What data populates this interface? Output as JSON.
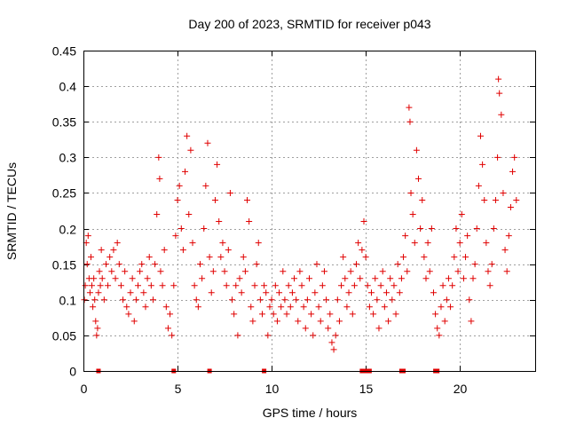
{
  "colors": {
    "series": "#e00000",
    "grid": "#a0a0a0",
    "frame": "#000000"
  },
  "chart_data": {
    "type": "scatter",
    "title": "Day 200 of 2023, SRMTID for receiver p043",
    "xlabel": "GPS time / hours",
    "ylabel": "SRMTID / TECUs",
    "xlim": [
      0,
      24
    ],
    "ylim": [
      0,
      0.45
    ],
    "grid": true,
    "xticks": [
      {
        "value": 0,
        "label": "0"
      },
      {
        "value": 5,
        "label": "5"
      },
      {
        "value": 10,
        "label": "10"
      },
      {
        "value": 15,
        "label": "15"
      },
      {
        "value": 20,
        "label": "20"
      }
    ],
    "yticks": [
      {
        "value": 0,
        "label": "0"
      },
      {
        "value": 0.05,
        "label": "0.05"
      },
      {
        "value": 0.1,
        "label": "0.1"
      },
      {
        "value": 0.15,
        "label": "0.15"
      },
      {
        "value": 0.2,
        "label": "0.2"
      },
      {
        "value": 0.25,
        "label": "0.25"
      },
      {
        "value": 0.3,
        "label": "0.3"
      },
      {
        "value": 0.35,
        "label": "0.35"
      },
      {
        "value": 0.4,
        "label": "0.4"
      },
      {
        "value": 0.45,
        "label": "0.45"
      }
    ],
    "zero_markers_x": [
      0.8,
      4.8,
      6.7,
      9.6,
      14.8,
      15.0,
      15.2,
      16.9,
      17.0,
      18.7,
      18.8
    ],
    "series": [
      {
        "name": "SRMTID",
        "marker": "plus",
        "points": [
          [
            0.05,
            0.1
          ],
          [
            0.1,
            0.12
          ],
          [
            0.15,
            0.18
          ],
          [
            0.2,
            0.15
          ],
          [
            0.25,
            0.19
          ],
          [
            0.3,
            0.13
          ],
          [
            0.35,
            0.11
          ],
          [
            0.4,
            0.16
          ],
          [
            0.45,
            0.12
          ],
          [
            0.5,
            0.09
          ],
          [
            0.55,
            0.13
          ],
          [
            0.6,
            0.1
          ],
          [
            0.65,
            0.07
          ],
          [
            0.7,
            0.05
          ],
          [
            0.75,
            0.06
          ],
          [
            0.8,
            0.11
          ],
          [
            0.85,
            0.14
          ],
          [
            0.9,
            0.12
          ],
          [
            0.95,
            0.17
          ],
          [
            1.0,
            0.13
          ],
          [
            1.1,
            0.1
          ],
          [
            1.2,
            0.15
          ],
          [
            1.3,
            0.12
          ],
          [
            1.4,
            0.16
          ],
          [
            1.5,
            0.14
          ],
          [
            1.6,
            0.17
          ],
          [
            1.7,
            0.13
          ],
          [
            1.8,
            0.18
          ],
          [
            1.9,
            0.15
          ],
          [
            2.0,
            0.12
          ],
          [
            2.1,
            0.1
          ],
          [
            2.2,
            0.14
          ],
          [
            2.3,
            0.09
          ],
          [
            2.4,
            0.08
          ],
          [
            2.5,
            0.11
          ],
          [
            2.6,
            0.13
          ],
          [
            2.7,
            0.07
          ],
          [
            2.8,
            0.1
          ],
          [
            2.9,
            0.12
          ],
          [
            3.0,
            0.14
          ],
          [
            3.1,
            0.15
          ],
          [
            3.2,
            0.11
          ],
          [
            3.3,
            0.09
          ],
          [
            3.4,
            0.13
          ],
          [
            3.5,
            0.16
          ],
          [
            3.6,
            0.12
          ],
          [
            3.7,
            0.1
          ],
          [
            3.8,
            0.15
          ],
          [
            3.9,
            0.22
          ],
          [
            4.0,
            0.3
          ],
          [
            4.05,
            0.27
          ],
          [
            4.1,
            0.14
          ],
          [
            4.2,
            0.12
          ],
          [
            4.3,
            0.17
          ],
          [
            4.4,
            0.09
          ],
          [
            4.5,
            0.06
          ],
          [
            4.6,
            0.08
          ],
          [
            4.7,
            0.05
          ],
          [
            4.8,
            0.12
          ],
          [
            4.9,
            0.19
          ],
          [
            5.0,
            0.24
          ],
          [
            5.1,
            0.26
          ],
          [
            5.2,
            0.2
          ],
          [
            5.3,
            0.17
          ],
          [
            5.4,
            0.28
          ],
          [
            5.5,
            0.33
          ],
          [
            5.6,
            0.22
          ],
          [
            5.7,
            0.31
          ],
          [
            5.8,
            0.18
          ],
          [
            5.9,
            0.12
          ],
          [
            6.0,
            0.1
          ],
          [
            6.1,
            0.09
          ],
          [
            6.2,
            0.15
          ],
          [
            6.3,
            0.13
          ],
          [
            6.4,
            0.2
          ],
          [
            6.5,
            0.26
          ],
          [
            6.6,
            0.32
          ],
          [
            6.7,
            0.16
          ],
          [
            6.8,
            0.11
          ],
          [
            6.9,
            0.14
          ],
          [
            7.0,
            0.24
          ],
          [
            7.1,
            0.29
          ],
          [
            7.2,
            0.21
          ],
          [
            7.3,
            0.16
          ],
          [
            7.4,
            0.18
          ],
          [
            7.5,
            0.14
          ],
          [
            7.6,
            0.12
          ],
          [
            7.7,
            0.17
          ],
          [
            7.8,
            0.25
          ],
          [
            7.9,
            0.1
          ],
          [
            8.0,
            0.08
          ],
          [
            8.1,
            0.12
          ],
          [
            8.2,
            0.05
          ],
          [
            8.3,
            0.13
          ],
          [
            8.4,
            0.11
          ],
          [
            8.5,
            0.16
          ],
          [
            8.6,
            0.14
          ],
          [
            8.7,
            0.24
          ],
          [
            8.8,
            0.21
          ],
          [
            8.9,
            0.09
          ],
          [
            9.0,
            0.07
          ],
          [
            9.1,
            0.12
          ],
          [
            9.2,
            0.15
          ],
          [
            9.3,
            0.18
          ],
          [
            9.4,
            0.1
          ],
          [
            9.5,
            0.08
          ],
          [
            9.6,
            0.12
          ],
          [
            9.7,
            0.11
          ],
          [
            9.8,
            0.05
          ],
          [
            9.9,
            0.09
          ],
          [
            10.0,
            0.1
          ],
          [
            10.1,
            0.08
          ],
          [
            10.2,
            0.12
          ],
          [
            10.3,
            0.07
          ],
          [
            10.4,
            0.11
          ],
          [
            10.5,
            0.09
          ],
          [
            10.6,
            0.14
          ],
          [
            10.7,
            0.1
          ],
          [
            10.8,
            0.08
          ],
          [
            10.9,
            0.12
          ],
          [
            11.0,
            0.09
          ],
          [
            11.1,
            0.11
          ],
          [
            11.2,
            0.13
          ],
          [
            11.3,
            0.1
          ],
          [
            11.4,
            0.07
          ],
          [
            11.5,
            0.14
          ],
          [
            11.6,
            0.12
          ],
          [
            11.7,
            0.09
          ],
          [
            11.8,
            0.06
          ],
          [
            11.9,
            0.1
          ],
          [
            12.0,
            0.13
          ],
          [
            12.1,
            0.08
          ],
          [
            12.2,
            0.05
          ],
          [
            12.3,
            0.11
          ],
          [
            12.4,
            0.15
          ],
          [
            12.5,
            0.09
          ],
          [
            12.6,
            0.07
          ],
          [
            12.7,
            0.12
          ],
          [
            12.8,
            0.14
          ],
          [
            12.9,
            0.1
          ],
          [
            13.0,
            0.06
          ],
          [
            13.1,
            0.08
          ],
          [
            13.2,
            0.04
          ],
          [
            13.3,
            0.03
          ],
          [
            13.4,
            0.05
          ],
          [
            13.5,
            0.1
          ],
          [
            13.6,
            0.07
          ],
          [
            13.7,
            0.12
          ],
          [
            13.8,
            0.16
          ],
          [
            13.9,
            0.13
          ],
          [
            14.0,
            0.09
          ],
          [
            14.1,
            0.11
          ],
          [
            14.2,
            0.14
          ],
          [
            14.3,
            0.08
          ],
          [
            14.4,
            0.12
          ],
          [
            14.5,
            0.15
          ],
          [
            14.6,
            0.18
          ],
          [
            14.7,
            0.13
          ],
          [
            14.8,
            0.17
          ],
          [
            14.9,
            0.21
          ],
          [
            15.0,
            0.16
          ],
          [
            15.1,
            0.12
          ],
          [
            15.2,
            0.09
          ],
          [
            15.3,
            0.11
          ],
          [
            15.4,
            0.08
          ],
          [
            15.5,
            0.13
          ],
          [
            15.6,
            0.1
          ],
          [
            15.7,
            0.06
          ],
          [
            15.8,
            0.12
          ],
          [
            15.9,
            0.14
          ],
          [
            16.0,
            0.09
          ],
          [
            16.1,
            0.11
          ],
          [
            16.2,
            0.07
          ],
          [
            16.3,
            0.13
          ],
          [
            16.4,
            0.1
          ],
          [
            16.5,
            0.12
          ],
          [
            16.6,
            0.08
          ],
          [
            16.7,
            0.15
          ],
          [
            16.8,
            0.11
          ],
          [
            16.9,
            0.13
          ],
          [
            17.0,
            0.16
          ],
          [
            17.1,
            0.19
          ],
          [
            17.2,
            0.14
          ],
          [
            17.3,
            0.37
          ],
          [
            17.35,
            0.35
          ],
          [
            17.4,
            0.25
          ],
          [
            17.5,
            0.22
          ],
          [
            17.6,
            0.18
          ],
          [
            17.7,
            0.31
          ],
          [
            17.8,
            0.27
          ],
          [
            17.9,
            0.2
          ],
          [
            18.0,
            0.24
          ],
          [
            18.1,
            0.16
          ],
          [
            18.2,
            0.13
          ],
          [
            18.3,
            0.18
          ],
          [
            18.4,
            0.14
          ],
          [
            18.5,
            0.2
          ],
          [
            18.6,
            0.11
          ],
          [
            18.7,
            0.08
          ],
          [
            18.8,
            0.06
          ],
          [
            18.9,
            0.05
          ],
          [
            19.0,
            0.09
          ],
          [
            19.1,
            0.12
          ],
          [
            19.2,
            0.07
          ],
          [
            19.3,
            0.1
          ],
          [
            19.4,
            0.13
          ],
          [
            19.5,
            0.09
          ],
          [
            19.6,
            0.12
          ],
          [
            19.7,
            0.16
          ],
          [
            19.8,
            0.2
          ],
          [
            19.9,
            0.14
          ],
          [
            20.0,
            0.18
          ],
          [
            20.1,
            0.22
          ],
          [
            20.2,
            0.13
          ],
          [
            20.3,
            0.16
          ],
          [
            20.4,
            0.19
          ],
          [
            20.5,
            0.1
          ],
          [
            20.6,
            0.07
          ],
          [
            20.7,
            0.13
          ],
          [
            20.8,
            0.15
          ],
          [
            20.9,
            0.2
          ],
          [
            21.0,
            0.26
          ],
          [
            21.1,
            0.33
          ],
          [
            21.2,
            0.29
          ],
          [
            21.3,
            0.24
          ],
          [
            21.4,
            0.18
          ],
          [
            21.5,
            0.14
          ],
          [
            21.6,
            0.12
          ],
          [
            21.7,
            0.15
          ],
          [
            21.8,
            0.2
          ],
          [
            21.9,
            0.24
          ],
          [
            22.0,
            0.3
          ],
          [
            22.05,
            0.41
          ],
          [
            22.1,
            0.39
          ],
          [
            22.2,
            0.36
          ],
          [
            22.3,
            0.25
          ],
          [
            22.4,
            0.17
          ],
          [
            22.5,
            0.14
          ],
          [
            22.6,
            0.19
          ],
          [
            22.7,
            0.23
          ],
          [
            22.8,
            0.28
          ],
          [
            22.9,
            0.3
          ],
          [
            23.0,
            0.24
          ]
        ]
      }
    ]
  }
}
